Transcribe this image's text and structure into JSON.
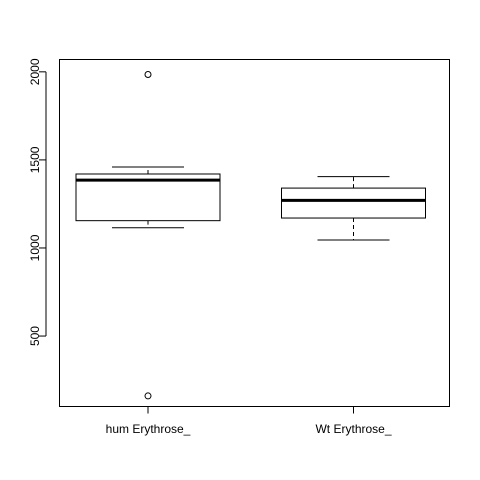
{
  "chart_data": {
    "type": "boxplot",
    "title": "",
    "xlabel": "",
    "ylabel": "",
    "ylim": [
      100,
      2070
    ],
    "y_ticks": [
      500,
      1000,
      1500,
      2000
    ],
    "y_tick_labels": [
      "500",
      "1000",
      "1500",
      "2000"
    ],
    "grid": false,
    "categories": [
      "hum Erythrose_",
      "Wt Erythrose_"
    ],
    "boxes": [
      {
        "category": "hum Erythrose_",
        "whisker_low": 1115,
        "q1": 1155,
        "median": 1385,
        "q3": 1420,
        "whisker_high": 1460,
        "outliers": [
          1985,
          160
        ]
      },
      {
        "category": "Wt Erythrose_",
        "whisker_low": 1045,
        "q1": 1170,
        "median": 1270,
        "q3": 1340,
        "whisker_high": 1405,
        "outliers": []
      }
    ]
  }
}
